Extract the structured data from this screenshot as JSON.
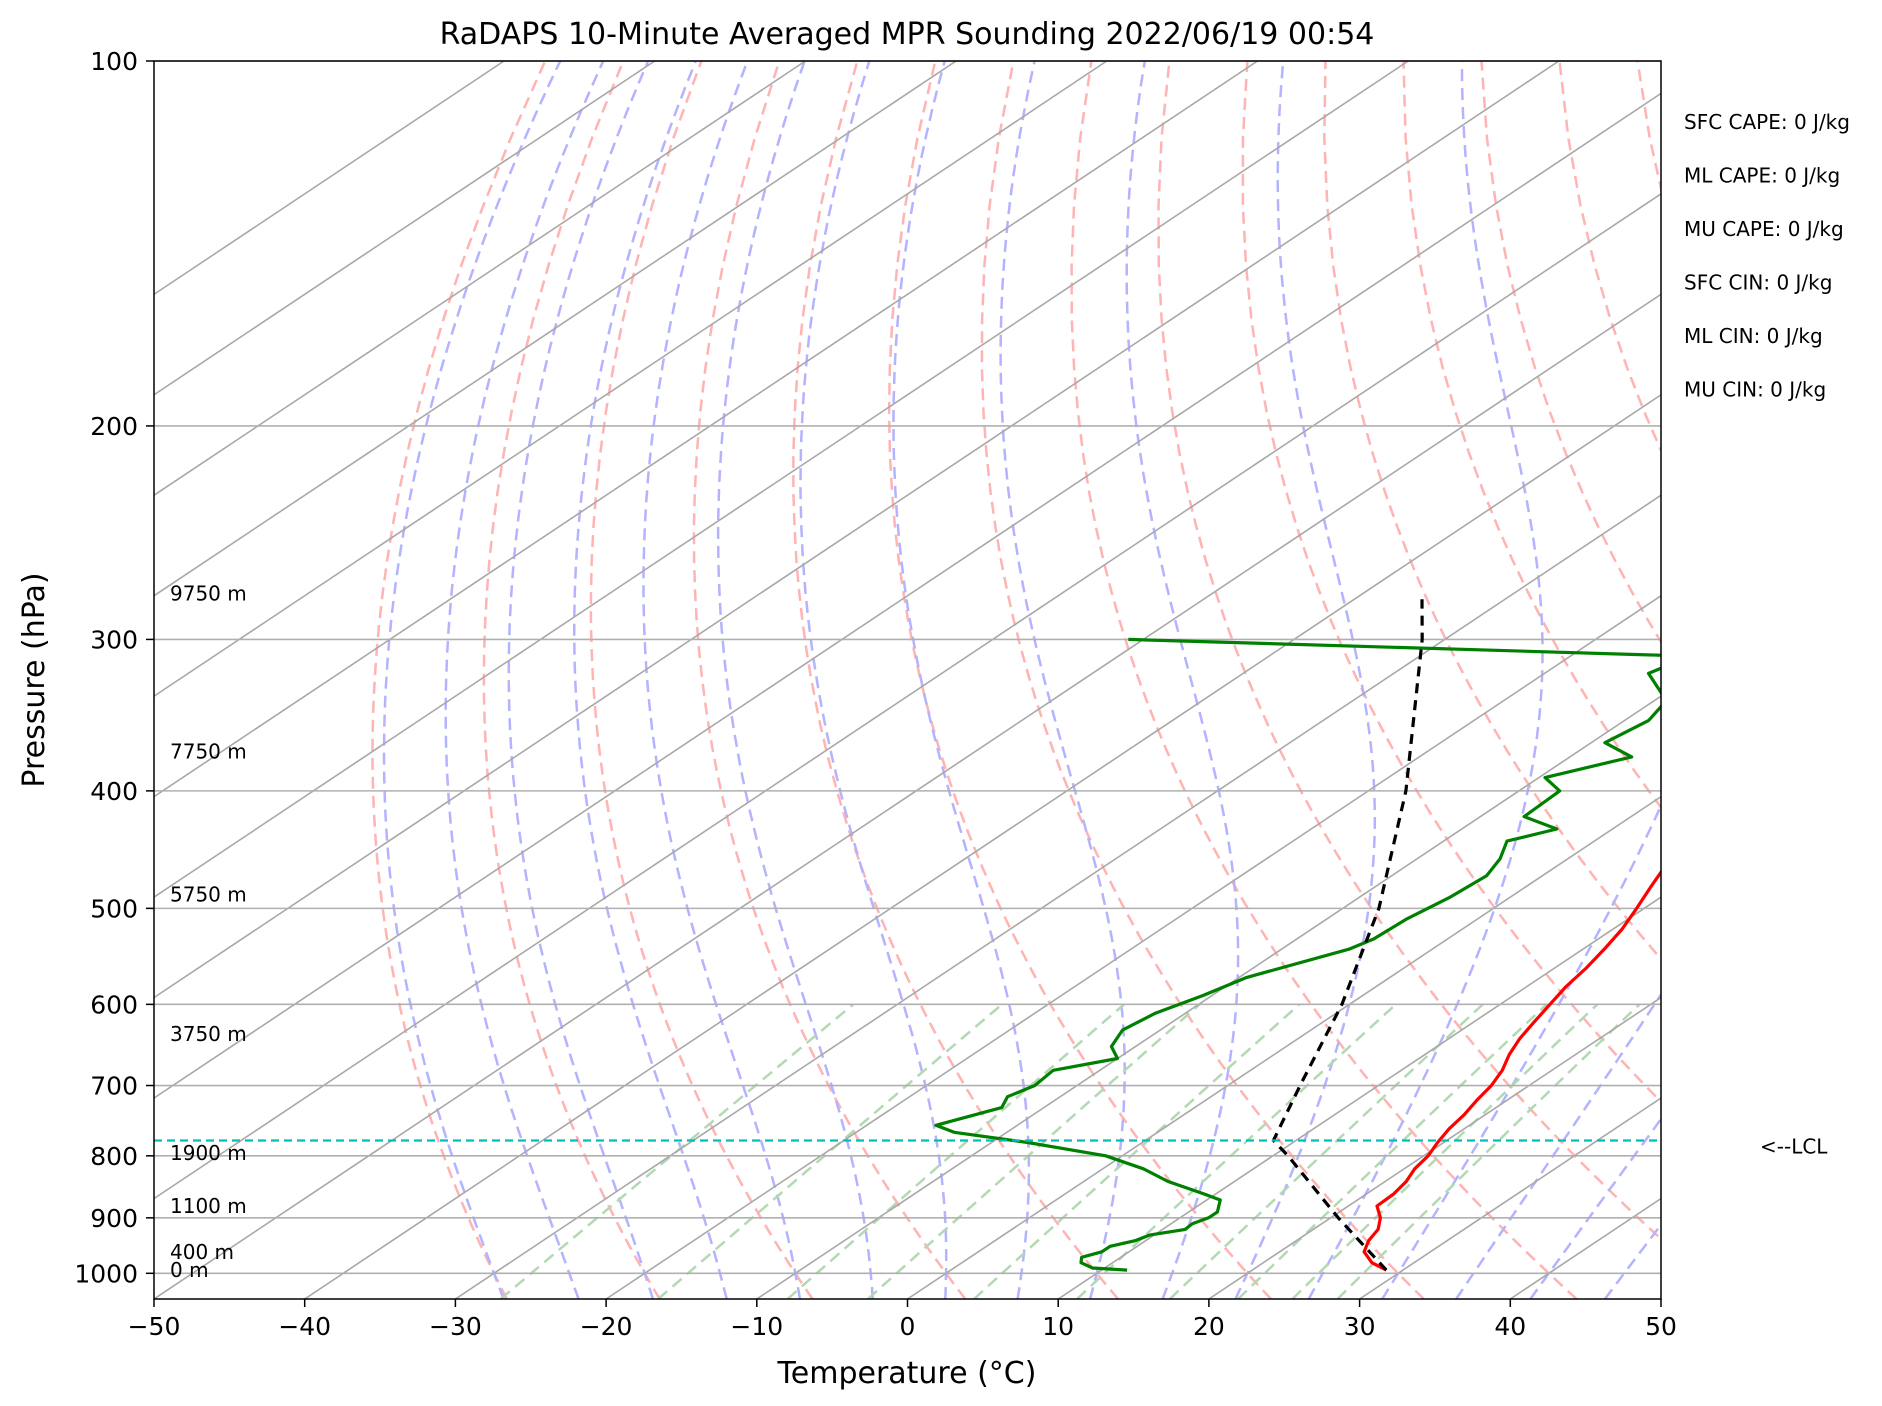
{
  "chart_data": {
    "type": "line",
    "subtype": "skew-t log-p sounding",
    "title": "RaDAPS 10-Minute Averaged MPR Sounding 2022/06/19 00:54",
    "xlabel": "Temperature (°C)",
    "ylabel": "Pressure (hPa)",
    "xlim": [
      -50,
      50
    ],
    "ylim": [
      1050,
      100
    ],
    "y_scale": "log",
    "grid": true,
    "x_ticks": [
      -50,
      -40,
      -30,
      -20,
      -10,
      0,
      10,
      20,
      30,
      40,
      50
    ],
    "x_tick_labels": [
      "−50",
      "−40",
      "−30",
      "−20",
      "−10",
      "0",
      "10",
      "20",
      "30",
      "40",
      "50"
    ],
    "y_ticks": [
      1000,
      900,
      800,
      700,
      600,
      500,
      400,
      300,
      200,
      100
    ],
    "y_tick_labels": [
      "1000",
      "900",
      "800",
      "700",
      "600",
      "500",
      "400",
      "300",
      "200",
      "100"
    ],
    "series": [
      {
        "role": "temperature",
        "color": "#ff0000",
        "points": [
          [
            994,
            28.9
          ],
          [
            980,
            27.2
          ],
          [
            960,
            25.6
          ],
          [
            940,
            24.8
          ],
          [
            920,
            24.3
          ],
          [
            900,
            23.3
          ],
          [
            880,
            21.9
          ],
          [
            860,
            21.8
          ],
          [
            840,
            21.4
          ],
          [
            820,
            20.7
          ],
          [
            800,
            20.3
          ],
          [
            780,
            19.6
          ],
          [
            760,
            19.0
          ],
          [
            740,
            18.6
          ],
          [
            720,
            18.0
          ],
          [
            700,
            17.5
          ],
          [
            680,
            16.7
          ],
          [
            660,
            15.6
          ],
          [
            640,
            14.7
          ],
          [
            620,
            14.0
          ],
          [
            600,
            13.3
          ],
          [
            580,
            12.6
          ],
          [
            560,
            12.1
          ],
          [
            540,
            11.4
          ],
          [
            520,
            10.6
          ],
          [
            500,
            9.5
          ],
          [
            480,
            8.3
          ],
          [
            460,
            7.1
          ],
          [
            440,
            6.2
          ],
          [
            420,
            5.0
          ],
          [
            400,
            3.5
          ],
          [
            380,
            1.8
          ],
          [
            360,
            0.2
          ],
          [
            340,
            -1.5
          ],
          [
            320,
            -3.1
          ],
          [
            300,
            -4.6
          ],
          [
            285,
            -6.2
          ],
          [
            272,
            -7.8
          ]
        ]
      },
      {
        "role": "dewpoint",
        "color": "#008000",
        "points": [
          [
            994,
            11.7
          ],
          [
            990,
            9.2
          ],
          [
            980,
            7.9
          ],
          [
            970,
            7.4
          ],
          [
            960,
            8.2
          ],
          [
            950,
            8.2
          ],
          [
            940,
            9.3
          ],
          [
            930,
            9.7
          ],
          [
            920,
            11.5
          ],
          [
            910,
            11.4
          ],
          [
            900,
            11.9
          ],
          [
            890,
            11.9
          ],
          [
            880,
            11.4
          ],
          [
            870,
            10.9
          ],
          [
            860,
            9.2
          ],
          [
            840,
            5.6
          ],
          [
            820,
            2.7
          ],
          [
            800,
            -1.1
          ],
          [
            780,
            -7.6
          ],
          [
            765,
            -13.5
          ],
          [
            755,
            -15.4
          ],
          [
            730,
            -12.8
          ],
          [
            715,
            -13.5
          ],
          [
            700,
            -12.8
          ],
          [
            680,
            -13.1
          ],
          [
            665,
            -10.0
          ],
          [
            650,
            -11.6
          ],
          [
            630,
            -12.5
          ],
          [
            610,
            -12.0
          ],
          [
            590,
            -10.6
          ],
          [
            570,
            -9.5
          ],
          [
            540,
            -5.5
          ],
          [
            530,
            -4.9
          ],
          [
            510,
            -4.7
          ],
          [
            490,
            -4.0
          ],
          [
            470,
            -3.7
          ],
          [
            455,
            -4.5
          ],
          [
            440,
            -5.8
          ],
          [
            430,
            -3.7
          ],
          [
            420,
            -7.1
          ],
          [
            400,
            -7.3
          ],
          [
            390,
            -9.6
          ],
          [
            375,
            -5.9
          ],
          [
            365,
            -9.1
          ],
          [
            350,
            -8.4
          ],
          [
            337,
            -9.2
          ],
          [
            320,
            -13.1
          ],
          [
            313,
            -12.4
          ],
          [
            310,
            -10.7
          ],
          [
            300,
            -51.0
          ]
        ]
      },
      {
        "role": "parcel profile",
        "color": "#000000",
        "dashed": true,
        "points": [
          [
            994,
            28.9
          ],
          [
            900,
            20.5
          ],
          [
            800,
            11.0
          ],
          [
            777,
            8.5
          ],
          [
            700,
            4.8
          ],
          [
            600,
            -0.5
          ],
          [
            500,
            -7.6
          ],
          [
            400,
            -17.5
          ],
          [
            300,
            -31.5
          ],
          [
            278,
            -35.5
          ]
        ]
      }
    ],
    "annotations": {
      "height_labels": [
        {
          "p": 994,
          "text": "0 m"
        },
        {
          "p": 960,
          "text": "400 m"
        },
        {
          "p": 880,
          "text": "1100 m"
        },
        {
          "p": 796,
          "text": "1900 m"
        },
        {
          "p": 635,
          "text": "3750 m"
        },
        {
          "p": 487,
          "text": "5750 m"
        },
        {
          "p": 371,
          "text": "7750 m"
        },
        {
          "p": 275,
          "text": "9750 m"
        }
      ],
      "lcl": {
        "p": 777,
        "label": "<--LCL",
        "color": "#00bfbf"
      },
      "indices": [
        "SFC CAPE: 0 J/kg",
        "ML CAPE: 0 J/kg",
        "MU CAPE: 0 J/kg",
        "SFC CIN: 0 J/kg",
        "ML CIN: 0 J/kg",
        "MU CIN: 0 J/kg"
      ]
    },
    "background_lines": {
      "isotherms_color": "#a8a8a8",
      "dry_adiabats_color": "#ffb3b3",
      "moist_adiabats_color": "#b3b3ff",
      "mixing_ratio_color": "#b3d9b3"
    }
  }
}
